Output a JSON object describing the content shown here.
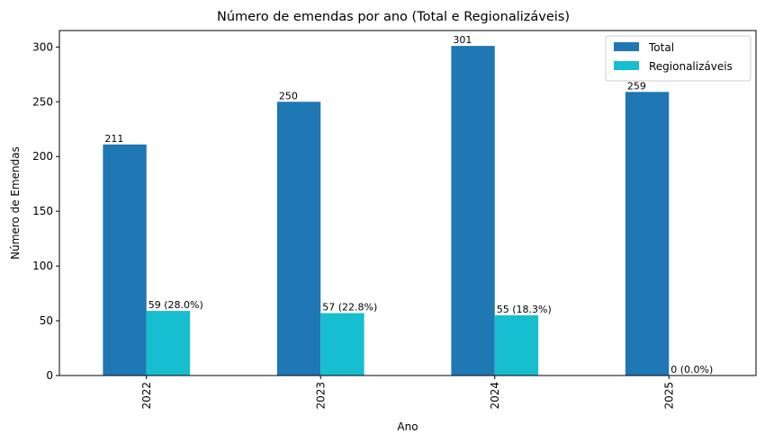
{
  "chart_data": {
    "type": "bar",
    "title": "Número de emendas por ano (Total e Regionalizáveis)",
    "xlabel": "Ano",
    "ylabel": "Número de Emendas",
    "categories": [
      "2022",
      "2023",
      "2024",
      "2025"
    ],
    "series": [
      {
        "name": "Total",
        "color": "#1f77b4",
        "values": [
          211,
          250,
          301,
          259
        ],
        "labels": [
          "211",
          "250",
          "301",
          "259"
        ]
      },
      {
        "name": "Regionalizáveis",
        "color": "#17becf",
        "values": [
          59,
          57,
          55,
          0
        ],
        "labels": [
          "59 (28.0%)",
          "57 (22.8%)",
          "55 (18.3%)",
          "0 (0.0%)"
        ]
      }
    ],
    "ylim": [
      0,
      315.05
    ],
    "yticks": [
      0,
      50,
      100,
      150,
      200,
      250,
      300
    ],
    "grid": false,
    "legend_position": "top-right"
  }
}
